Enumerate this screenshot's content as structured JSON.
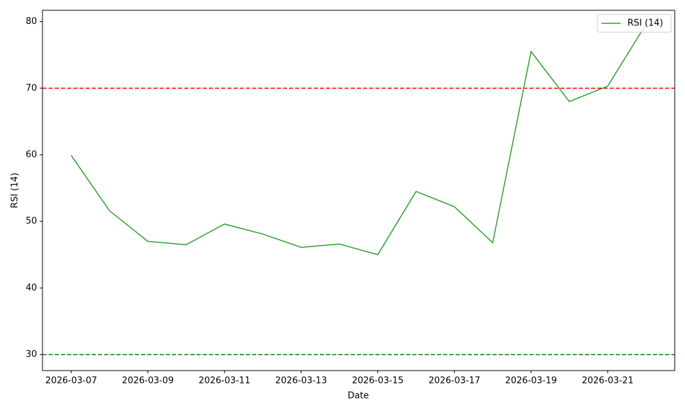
{
  "chart_data": {
    "type": "line",
    "x_label": "Date",
    "y_label": "RSI (14)",
    "x": [
      "2026-03-07",
      "2026-03-08",
      "2026-03-09",
      "2026-03-10",
      "2026-03-11",
      "2026-03-12",
      "2026-03-13",
      "2026-03-14",
      "2026-03-15",
      "2026-03-16",
      "2026-03-17",
      "2026-03-18",
      "2026-03-19",
      "2026-03-20",
      "2026-03-21",
      "2026-03-22"
    ],
    "series": [
      {
        "name": "RSI (14)",
        "color": "#2ca02c",
        "values": [
          59.9,
          51.6,
          47.0,
          46.5,
          49.6,
          48.1,
          46.1,
          46.6,
          45.0,
          54.5,
          52.2,
          46.8,
          75.5,
          68.0,
          70.3,
          79.6
        ]
      }
    ],
    "hlines": [
      {
        "value": 70,
        "color": "red"
      },
      {
        "value": 30,
        "color": "green"
      }
    ],
    "xlim": [
      "2026-03-06T06:00:00Z",
      "2026-03-22T18:00:00Z"
    ],
    "xticks": [
      "2026-03-07",
      "2026-03-09",
      "2026-03-11",
      "2026-03-13",
      "2026-03-15",
      "2026-03-17",
      "2026-03-19",
      "2026-03-21"
    ],
    "ylim": [
      27.6,
      81.7
    ],
    "yticks": [
      30,
      40,
      50,
      60,
      70,
      80
    ],
    "legend": "upper right"
  }
}
